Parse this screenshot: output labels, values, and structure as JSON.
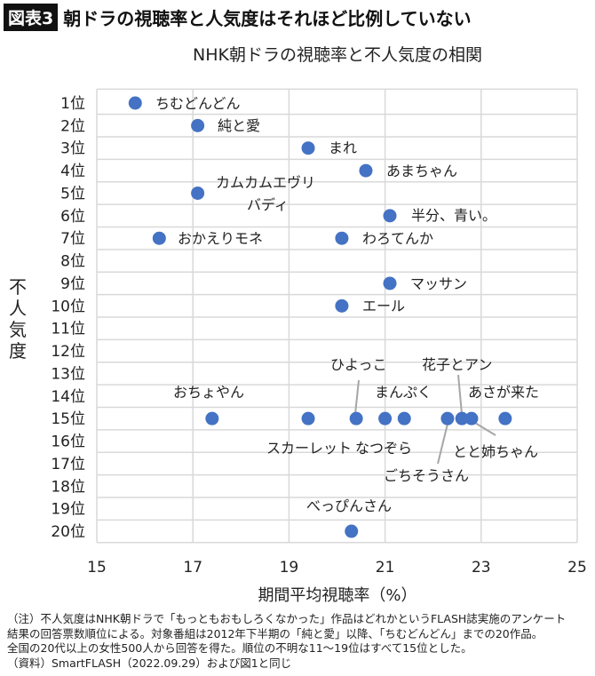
{
  "header": {
    "badge": "図表3",
    "title": "朝ドラの視聴率と人気度はそれほど比例していない"
  },
  "chart_data": {
    "type": "scatter",
    "title": "NHK朝ドラの視聴率と不人気度の相関",
    "xlabel": "期間平均視聴率（%）",
    "ylabel": "不人気度",
    "xlim": [
      15,
      25
    ],
    "xticks": [
      15,
      17,
      19,
      21,
      23,
      25
    ],
    "ylim": [
      1,
      20
    ],
    "y_reversed": true,
    "yticks": [
      "1位",
      "2位",
      "3位",
      "4位",
      "5位",
      "6位",
      "7位",
      "8位",
      "9位",
      "10位",
      "11位",
      "12位",
      "13位",
      "14位",
      "15位",
      "16位",
      "17位",
      "18位",
      "19位",
      "20位"
    ],
    "grid": true,
    "color": "#4472C4",
    "points": [
      {
        "name": "ちむどんどん",
        "x": 15.8,
        "y": 1
      },
      {
        "name": "純と愛",
        "x": 17.1,
        "y": 2
      },
      {
        "name": "まれ",
        "x": 19.4,
        "y": 3
      },
      {
        "name": "あまちゃん",
        "x": 20.6,
        "y": 4
      },
      {
        "name": "カムカムエヴリバディ",
        "x": 17.1,
        "y": 5
      },
      {
        "name": "半分、青い。",
        "x": 21.1,
        "y": 6
      },
      {
        "name": "おかえりモネ",
        "x": 16.3,
        "y": 7
      },
      {
        "name": "わろてんか",
        "x": 20.1,
        "y": 7
      },
      {
        "name": "マッサン",
        "x": 21.1,
        "y": 9
      },
      {
        "name": "エール",
        "x": 20.1,
        "y": 10
      },
      {
        "name": "おちょやん",
        "x": 17.4,
        "y": 15
      },
      {
        "name": "スカーレット",
        "x": 19.4,
        "y": 15
      },
      {
        "name": "ひよっこ",
        "x": 20.4,
        "y": 15
      },
      {
        "name": "なつぞら",
        "x": 21.0,
        "y": 15
      },
      {
        "name": "まんぷく",
        "x": 21.4,
        "y": 15
      },
      {
        "name": "ごちそうさん",
        "x": 22.3,
        "y": 15
      },
      {
        "name": "花子とアン",
        "x": 22.6,
        "y": 15
      },
      {
        "name": "とと姉ちゃん",
        "x": 22.8,
        "y": 15
      },
      {
        "name": "あさが来た",
        "x": 23.5,
        "y": 15
      },
      {
        "name": "べっぴんさん",
        "x": 20.3,
        "y": 20
      }
    ]
  },
  "notes": [
    "（注）不人気度はNHK朝ドラで「もっともおもしろくなかった」作品はどれかというFLASH誌実施のアンケート",
    "結果の回答票数順位による。対象番組は2012年下半期の「純と愛」以降、「ちむどんどん」までの20作品。",
    "全国の20代以上の女性500人から回答を得た。順位の不明な11～19位はすべて15位とした。",
    "（資料）SmartFLASH（2022.09.29）および図1と同じ"
  ]
}
